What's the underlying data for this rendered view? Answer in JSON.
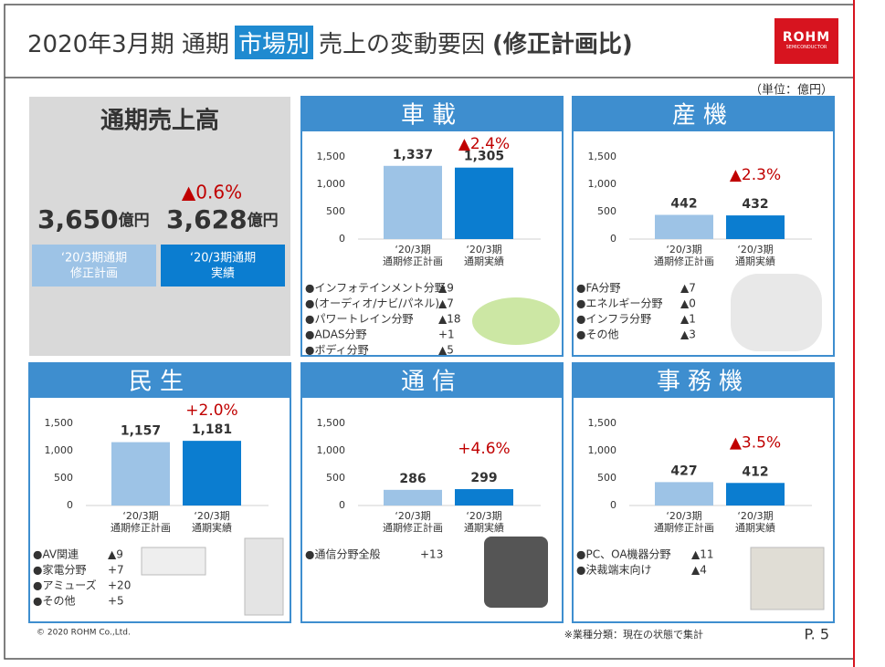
{
  "header": {
    "title_pre": "2020年3月期 通期",
    "title_highlight": "市場別",
    "title_post": "売上の変動要因",
    "title_bold": "(修正計画比)",
    "logo": "ROHM",
    "logo_sub": "SEMICONDUCTOR"
  },
  "unit": "（単位：億円）",
  "summary": {
    "title": "通期売上高",
    "change": "▲0.6%",
    "values": [
      3650,
      3628
    ],
    "value_labels": [
      "3,650",
      "3,628"
    ],
    "unit": "億円",
    "categories": [
      [
        "‘20/3期通期",
        "修正計画"
      ],
      [
        "‘20/3期通期",
        "実績"
      ]
    ],
    "colors": [
      "#9dc3e6",
      "#0b7dd0"
    ]
  },
  "chart_data": [
    {
      "type": "bar",
      "title": "車載",
      "categories": [
        [
          "‘20/3期",
          "通期修正計画"
        ],
        [
          "‘20/3期",
          "通期実績"
        ]
      ],
      "values": [
        1337,
        1305
      ],
      "value_labels": [
        "1,337",
        "1,305"
      ],
      "colors": [
        "#9dc3e6",
        "#0b7dd0"
      ],
      "ylim": [
        0,
        1500
      ],
      "yticks": [
        0,
        500,
        {
          "value": 1000,
          "label": "1,000"
        },
        {
          "value": 1500,
          "label": "1,500"
        }
      ],
      "grid": false,
      "annotation": "▲2.4%",
      "breakdown": [
        [
          "●インフォテインメント分野",
          "▲9"
        ],
        [
          "●(オーディオ/ナビ/パネル)",
          "▲7"
        ],
        [
          "●パワートレイン分野",
          "▲18"
        ],
        [
          "●ADAS分野",
          "+1"
        ],
        [
          "●ボディ分野",
          "▲5"
        ]
      ]
    },
    {
      "type": "bar",
      "title": "産機",
      "categories": [
        [
          "‘20/3期",
          "通期修正計画"
        ],
        [
          "‘20/3期",
          "通期実績"
        ]
      ],
      "values": [
        442,
        432
      ],
      "colors": [
        "#9dc3e6",
        "#0b7dd0"
      ],
      "ylim": [
        0,
        1500
      ],
      "yticks": [
        0,
        500,
        {
          "value": 1000,
          "label": "1,000"
        },
        {
          "value": 1500,
          "label": "1,500"
        }
      ],
      "grid": false,
      "annotation": "▲2.3%",
      "breakdown": [
        [
          "●FA分野",
          "▲7"
        ],
        [
          "●エネルギー分野",
          "▲0"
        ],
        [
          "●インフラ分野",
          "▲1"
        ],
        [
          "●その他",
          "▲3"
        ]
      ]
    },
    {
      "type": "bar",
      "title": "民生",
      "categories": [
        [
          "‘20/3期",
          "通期修正計画"
        ],
        [
          "‘20/3期",
          "通期実績"
        ]
      ],
      "values": [
        1157,
        1181
      ],
      "value_labels": [
        "1,157",
        "1,181"
      ],
      "colors": [
        "#9dc3e6",
        "#0b7dd0"
      ],
      "ylim": [
        0,
        1500
      ],
      "yticks": [
        0,
        500,
        {
          "value": 1000,
          "label": "1,000"
        },
        {
          "value": 1500,
          "label": "1,500"
        }
      ],
      "grid": false,
      "annotation": "+2.0%",
      "breakdown": [
        [
          "●AV関連",
          "▲9"
        ],
        [
          "●家電分野",
          "+7"
        ],
        [
          "●アミューズ",
          "+20"
        ],
        [
          "●その他",
          "+5"
        ]
      ]
    },
    {
      "type": "bar",
      "title": "通信",
      "categories": [
        [
          "‘20/3期",
          "通期修正計画"
        ],
        [
          "‘20/3期",
          "通期実績"
        ]
      ],
      "values": [
        286,
        299
      ],
      "colors": [
        "#9dc3e6",
        "#0b7dd0"
      ],
      "ylim": [
        0,
        1500
      ],
      "yticks": [
        0,
        500,
        {
          "value": 1000,
          "label": "1,000"
        },
        {
          "value": 1500,
          "label": "1,500"
        }
      ],
      "grid": false,
      "annotation": "+4.6%",
      "breakdown": [
        [
          "●通信分野全般",
          "+13"
        ]
      ]
    },
    {
      "type": "bar",
      "title": "事務機",
      "categories": [
        [
          "‘20/3期",
          "通期修正計画"
        ],
        [
          "‘20/3期",
          "通期実績"
        ]
      ],
      "values": [
        427,
        412
      ],
      "colors": [
        "#9dc3e6",
        "#0b7dd0"
      ],
      "ylim": [
        0,
        1500
      ],
      "yticks": [
        0,
        500,
        {
          "value": 1000,
          "label": "1,000"
        },
        {
          "value": 1500,
          "label": "1,500"
        }
      ],
      "grid": false,
      "annotation": "▲3.5%",
      "breakdown": [
        [
          "●PC、OA機器分野",
          "▲11"
        ],
        [
          "●決裁端末向け",
          "▲4"
        ]
      ]
    }
  ],
  "footer": {
    "copyright": "© 2020 ROHM Co.,Ltd.",
    "note": "※業種分類：現在の状態で集計",
    "page": "P. 5"
  }
}
